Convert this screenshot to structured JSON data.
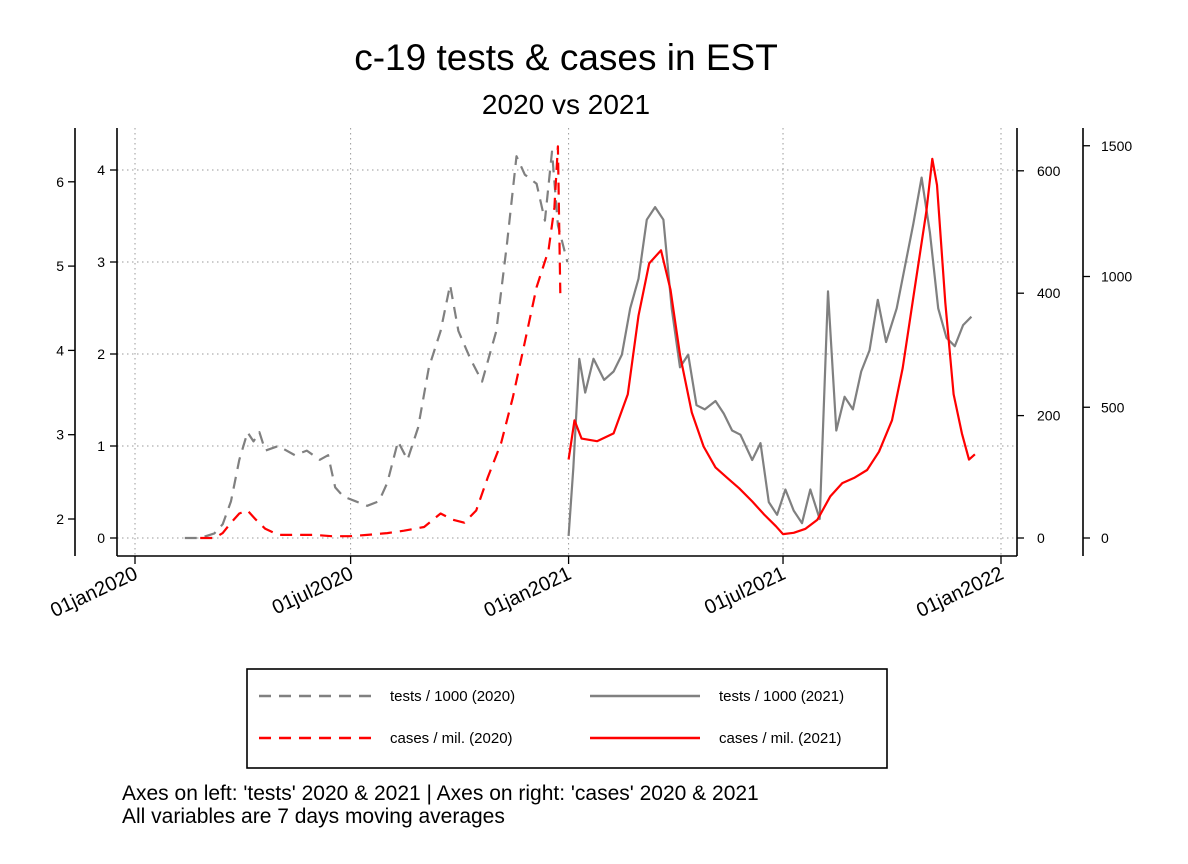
{
  "chart_data": {
    "type": "line",
    "title": "c-19 tests & cases in EST",
    "subtitle": "2020 vs 2021",
    "notes": [
      "Axes on left: 'tests' 2020 & 2021 | Axes on right: 'cases' 2020 & 2021",
      "All variables are 7 days moving averages"
    ],
    "x_ticks": [
      "01jan2020",
      "01jul2020",
      "01jan2021",
      "01jul2021",
      "01jan2022"
    ],
    "xlim": [
      "2020-01-01",
      "2022-01-01"
    ],
    "axes": {
      "left_outer": {
        "ticks": [
          2,
          3,
          4,
          5,
          6
        ],
        "series": "tests / 1000 (2021)"
      },
      "left_inner": {
        "ticks": [
          0,
          1,
          2,
          3,
          4
        ],
        "series": "tests / 1000 (2020)"
      },
      "right_inner": {
        "ticks": [
          0,
          200,
          400,
          600
        ],
        "series": "cases / mil. (2020)"
      },
      "right_outer": {
        "ticks": [
          0,
          500,
          1000,
          1500
        ],
        "series": "cases / mil. (2021)"
      }
    },
    "grid": true,
    "legend_position": "bottom",
    "series": [
      {
        "name": "tests / 1000 (2020)",
        "axis": "left_inner",
        "color": "#808080",
        "dash": "dashed",
        "points": [
          [
            "2020-02-12",
            0.0
          ],
          [
            "2020-02-25",
            0.0
          ],
          [
            "2020-03-08",
            0.05
          ],
          [
            "2020-03-15",
            0.15
          ],
          [
            "2020-03-22",
            0.4
          ],
          [
            "2020-03-29",
            0.85
          ],
          [
            "2020-04-05",
            1.15
          ],
          [
            "2020-04-10",
            1.05
          ],
          [
            "2020-04-15",
            1.15
          ],
          [
            "2020-04-20",
            0.95
          ],
          [
            "2020-05-01",
            1.0
          ],
          [
            "2020-05-15",
            0.9
          ],
          [
            "2020-05-25",
            0.95
          ],
          [
            "2020-06-05",
            0.85
          ],
          [
            "2020-06-12",
            0.9
          ],
          [
            "2020-06-18",
            0.55
          ],
          [
            "2020-06-25",
            0.45
          ],
          [
            "2020-07-05",
            0.4
          ],
          [
            "2020-07-15",
            0.35
          ],
          [
            "2020-07-25",
            0.4
          ],
          [
            "2020-08-01",
            0.6
          ],
          [
            "2020-08-10",
            1.05
          ],
          [
            "2020-08-18",
            0.85
          ],
          [
            "2020-08-27",
            1.2
          ],
          [
            "2020-09-05",
            1.85
          ],
          [
            "2020-09-15",
            2.25
          ],
          [
            "2020-09-23",
            2.75
          ],
          [
            "2020-09-30",
            2.25
          ],
          [
            "2020-10-10",
            1.95
          ],
          [
            "2020-10-20",
            1.7
          ],
          [
            "2020-11-01",
            2.25
          ],
          [
            "2020-11-10",
            3.2
          ],
          [
            "2020-11-18",
            4.15
          ],
          [
            "2020-11-25",
            3.95
          ],
          [
            "2020-12-05",
            3.85
          ],
          [
            "2020-12-12",
            3.45
          ],
          [
            "2020-12-18",
            4.2
          ],
          [
            "2020-12-23",
            3.4
          ],
          [
            "2020-12-31",
            3.0
          ]
        ]
      },
      {
        "name": "tests / 1000 (2021)",
        "axis": "left_outer",
        "color": "#808080",
        "dash": "solid",
        "points": [
          [
            "2021-01-01",
            1.8
          ],
          [
            "2021-01-05",
            2.6
          ],
          [
            "2021-01-10",
            3.9
          ],
          [
            "2021-01-15",
            3.5
          ],
          [
            "2021-01-22",
            3.9
          ],
          [
            "2021-01-31",
            3.65
          ],
          [
            "2021-02-08",
            3.75
          ],
          [
            "2021-02-15",
            3.95
          ],
          [
            "2021-02-22",
            4.5
          ],
          [
            "2021-03-01",
            4.85
          ],
          [
            "2021-03-08",
            5.55
          ],
          [
            "2021-03-15",
            5.7
          ],
          [
            "2021-03-22",
            5.55
          ],
          [
            "2021-03-29",
            4.5
          ],
          [
            "2021-04-05",
            3.8
          ],
          [
            "2021-04-12",
            3.95
          ],
          [
            "2021-04-19",
            3.35
          ],
          [
            "2021-04-26",
            3.3
          ],
          [
            "2021-05-05",
            3.4
          ],
          [
            "2021-05-12",
            3.25
          ],
          [
            "2021-05-19",
            3.05
          ],
          [
            "2021-05-26",
            3.0
          ],
          [
            "2021-06-05",
            2.7
          ],
          [
            "2021-06-12",
            2.9
          ],
          [
            "2021-06-19",
            2.2
          ],
          [
            "2021-06-26",
            2.05
          ],
          [
            "2021-07-03",
            2.35
          ],
          [
            "2021-07-10",
            2.1
          ],
          [
            "2021-07-17",
            1.95
          ],
          [
            "2021-07-24",
            2.35
          ],
          [
            "2021-08-01",
            2.0
          ],
          [
            "2021-08-08",
            4.7
          ],
          [
            "2021-08-15",
            3.05
          ],
          [
            "2021-08-22",
            3.45
          ],
          [
            "2021-08-29",
            3.3
          ],
          [
            "2021-09-05",
            3.75
          ],
          [
            "2021-09-12",
            4.0
          ],
          [
            "2021-09-19",
            4.6
          ],
          [
            "2021-09-26",
            4.1
          ],
          [
            "2021-10-05",
            4.5
          ],
          [
            "2021-10-12",
            5.0
          ],
          [
            "2021-10-19",
            5.5
          ],
          [
            "2021-10-26",
            6.05
          ],
          [
            "2021-11-02",
            5.4
          ],
          [
            "2021-11-09",
            4.5
          ],
          [
            "2021-11-16",
            4.15
          ],
          [
            "2021-11-23",
            4.05
          ],
          [
            "2021-11-30",
            4.3
          ],
          [
            "2021-12-07",
            4.4
          ]
        ]
      },
      {
        "name": "cases / mil. (2020)",
        "axis": "right_inner",
        "color": "#ff0000",
        "dash": "dashed",
        "points": [
          [
            "2020-02-25",
            0
          ],
          [
            "2020-03-08",
            0
          ],
          [
            "2020-03-15",
            8
          ],
          [
            "2020-03-22",
            25
          ],
          [
            "2020-03-29",
            40
          ],
          [
            "2020-04-05",
            45
          ],
          [
            "2020-04-12",
            30
          ],
          [
            "2020-04-20",
            15
          ],
          [
            "2020-05-01",
            5
          ],
          [
            "2020-05-15",
            5
          ],
          [
            "2020-06-01",
            5
          ],
          [
            "2020-06-15",
            3
          ],
          [
            "2020-07-01",
            3
          ],
          [
            "2020-07-15",
            5
          ],
          [
            "2020-08-01",
            8
          ],
          [
            "2020-08-15",
            12
          ],
          [
            "2020-09-01",
            18
          ],
          [
            "2020-09-15",
            40
          ],
          [
            "2020-09-25",
            30
          ],
          [
            "2020-10-05",
            25
          ],
          [
            "2020-10-15",
            45
          ],
          [
            "2020-10-25",
            100
          ],
          [
            "2020-11-05",
            155
          ],
          [
            "2020-11-15",
            230
          ],
          [
            "2020-11-25",
            320
          ],
          [
            "2020-12-05",
            410
          ],
          [
            "2020-12-15",
            470
          ],
          [
            "2020-12-20",
            540
          ],
          [
            "2020-12-23",
            640
          ],
          [
            "2020-12-25",
            400
          ]
        ]
      },
      {
        "name": "cases / mil. (2021)",
        "axis": "right_outer",
        "color": "#ff0000",
        "dash": "solid",
        "points": [
          [
            "2021-01-01",
            300
          ],
          [
            "2021-01-06",
            450
          ],
          [
            "2021-01-12",
            380
          ],
          [
            "2021-01-25",
            370
          ],
          [
            "2021-02-08",
            400
          ],
          [
            "2021-02-20",
            550
          ],
          [
            "2021-03-01",
            850
          ],
          [
            "2021-03-10",
            1050
          ],
          [
            "2021-03-20",
            1100
          ],
          [
            "2021-03-28",
            950
          ],
          [
            "2021-04-05",
            700
          ],
          [
            "2021-04-15",
            480
          ],
          [
            "2021-04-25",
            350
          ],
          [
            "2021-05-05",
            270
          ],
          [
            "2021-05-15",
            230
          ],
          [
            "2021-05-25",
            190
          ],
          [
            "2021-06-05",
            140
          ],
          [
            "2021-06-15",
            90
          ],
          [
            "2021-06-25",
            45
          ],
          [
            "2021-07-01",
            15
          ],
          [
            "2021-07-10",
            20
          ],
          [
            "2021-07-20",
            35
          ],
          [
            "2021-07-30",
            70
          ],
          [
            "2021-08-10",
            160
          ],
          [
            "2021-08-20",
            210
          ],
          [
            "2021-08-30",
            230
          ],
          [
            "2021-09-10",
            260
          ],
          [
            "2021-09-20",
            330
          ],
          [
            "2021-10-01",
            450
          ],
          [
            "2021-10-10",
            650
          ],
          [
            "2021-10-20",
            950
          ],
          [
            "2021-10-30",
            1250
          ],
          [
            "2021-11-04",
            1450
          ],
          [
            "2021-11-08",
            1350
          ],
          [
            "2021-11-15",
            900
          ],
          [
            "2021-11-22",
            550
          ],
          [
            "2021-11-29",
            400
          ],
          [
            "2021-12-05",
            300
          ],
          [
            "2021-12-10",
            320
          ]
        ]
      }
    ]
  }
}
